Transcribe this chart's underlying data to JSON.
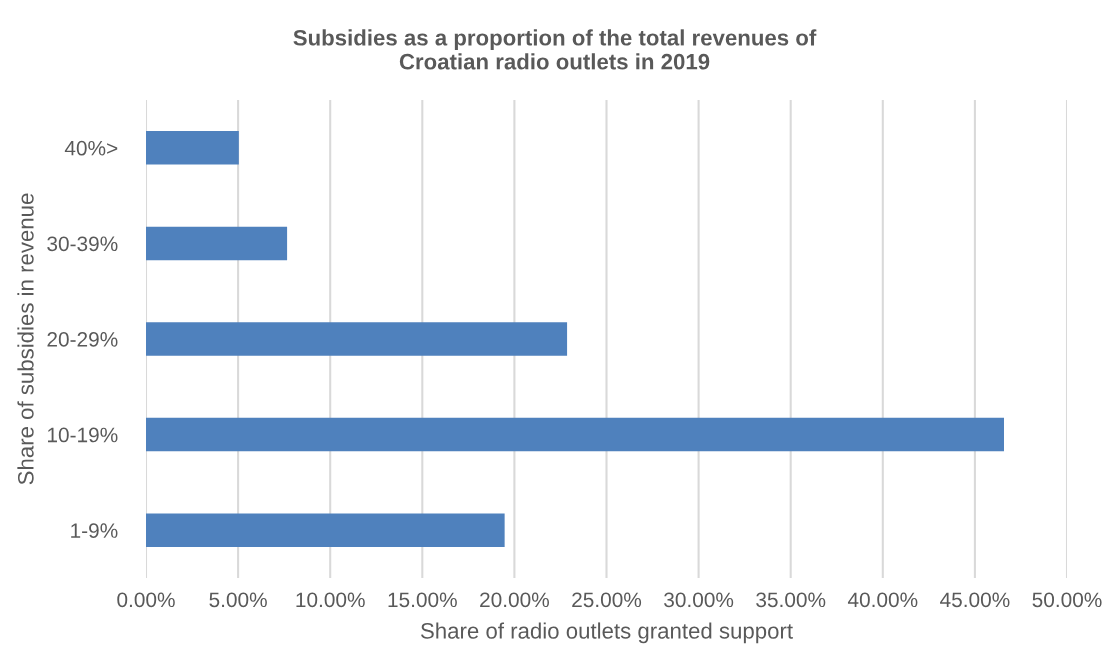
{
  "chart_data": {
    "type": "bar",
    "orientation": "horizontal",
    "title": "Subsidies as a proportion of the total revenues of\nCroatian radio outlets in 2019",
    "xlabel": "Share of radio outlets granted support",
    "ylabel": "Share of subsidies in revenue",
    "categories": [
      "40%>",
      "30-39%",
      "20-29%",
      "10-19%",
      "1-9%"
    ],
    "values": [
      5.04,
      7.66,
      22.86,
      46.58,
      19.47
    ],
    "color": "#4f81bd",
    "xlim": [
      0,
      50
    ],
    "xticks": [
      {
        "value": 0,
        "label": "0.00%"
      },
      {
        "value": 5,
        "label": "5.00%"
      },
      {
        "value": 10,
        "label": "10.00%"
      },
      {
        "value": 15,
        "label": "15.00%"
      },
      {
        "value": 20,
        "label": "20.00%"
      },
      {
        "value": 25,
        "label": "25.00%"
      },
      {
        "value": 30,
        "label": "30.00%"
      },
      {
        "value": 35,
        "label": "35.00%"
      },
      {
        "value": 40,
        "label": "40.00%"
      },
      {
        "value": 45,
        "label": "45.00%"
      },
      {
        "value": 50,
        "label": "50.00%"
      }
    ],
    "grid": "x",
    "legend": false
  }
}
